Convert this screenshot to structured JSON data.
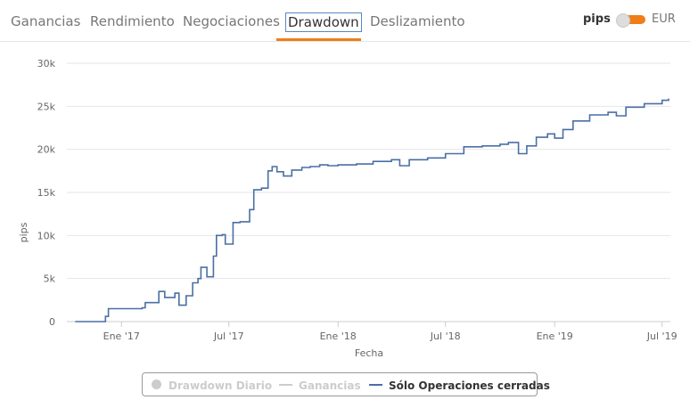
{
  "tabs": [
    {
      "label": "Ganancias"
    },
    {
      "label": "Rendimiento"
    },
    {
      "label": "Negociaciones"
    },
    {
      "label": "Drawdown"
    },
    {
      "label": "Deslizamiento"
    }
  ],
  "active_tab": "Drawdown",
  "unit_switch": {
    "left_label": "pips",
    "right_label": "EUR",
    "selected": "pips"
  },
  "colors": {
    "accent": "#f07d1a",
    "series_line": "#4a6fa5",
    "inactive_legend": "#cccccc",
    "grid": "#e6e6e6"
  },
  "chart_data": {
    "type": "line",
    "ylabel": "pips",
    "xlabel": "Fecha",
    "ylim": [
      0,
      30000
    ],
    "y_ticks": [
      "0",
      "5k",
      "10k",
      "15k",
      "20k",
      "25k",
      "30k"
    ],
    "x_ticks": [
      "Ene '17",
      "Jul '17",
      "Ene '18",
      "Jul '18",
      "Ene '19",
      "Jul '19"
    ],
    "x_range": [
      "2016-10-01",
      "2019-07-15"
    ],
    "grid": true,
    "legend_position": "bottom",
    "series": [
      {
        "name": "Sólo Operaciones cerradas",
        "visible": true,
        "points": [
          [
            "2016-10-15",
            0
          ],
          [
            "2016-11-20",
            0
          ],
          [
            "2016-12-05",
            600
          ],
          [
            "2016-12-10",
            1500
          ],
          [
            "2017-01-20",
            1500
          ],
          [
            "2017-02-05",
            1600
          ],
          [
            "2017-02-10",
            2200
          ],
          [
            "2017-03-01",
            2200
          ],
          [
            "2017-03-05",
            3500
          ],
          [
            "2017-03-15",
            2800
          ],
          [
            "2017-04-01",
            3300
          ],
          [
            "2017-04-08",
            1900
          ],
          [
            "2017-04-20",
            3000
          ],
          [
            "2017-05-01",
            4500
          ],
          [
            "2017-05-10",
            5000
          ],
          [
            "2017-05-15",
            6300
          ],
          [
            "2017-05-25",
            5200
          ],
          [
            "2017-06-05",
            7600
          ],
          [
            "2017-06-10",
            10000
          ],
          [
            "2017-06-20",
            10100
          ],
          [
            "2017-06-25",
            9000
          ],
          [
            "2017-07-05",
            9000
          ],
          [
            "2017-07-08",
            11500
          ],
          [
            "2017-07-20",
            11600
          ],
          [
            "2017-08-05",
            13000
          ],
          [
            "2017-08-12",
            15300
          ],
          [
            "2017-08-25",
            15500
          ],
          [
            "2017-09-05",
            17500
          ],
          [
            "2017-09-12",
            18000
          ],
          [
            "2017-09-20",
            17400
          ],
          [
            "2017-10-01",
            16900
          ],
          [
            "2017-10-15",
            17600
          ],
          [
            "2017-11-01",
            17900
          ],
          [
            "2017-11-15",
            18000
          ],
          [
            "2017-12-01",
            18200
          ],
          [
            "2017-12-15",
            18100
          ],
          [
            "2018-01-01",
            18200
          ],
          [
            "2018-02-01",
            18300
          ],
          [
            "2018-03-01",
            18600
          ],
          [
            "2018-04-01",
            18800
          ],
          [
            "2018-04-15",
            18100
          ],
          [
            "2018-05-01",
            18800
          ],
          [
            "2018-06-01",
            19000
          ],
          [
            "2018-07-01",
            19500
          ],
          [
            "2018-08-01",
            20300
          ],
          [
            "2018-09-01",
            20400
          ],
          [
            "2018-10-01",
            20600
          ],
          [
            "2018-10-15",
            20800
          ],
          [
            "2018-11-01",
            19500
          ],
          [
            "2018-11-15",
            20400
          ],
          [
            "2018-12-01",
            21400
          ],
          [
            "2018-12-20",
            21800
          ],
          [
            "2019-01-01",
            21300
          ],
          [
            "2019-01-15",
            22300
          ],
          [
            "2019-02-01",
            23300
          ],
          [
            "2019-03-01",
            24000
          ],
          [
            "2019-04-01",
            24300
          ],
          [
            "2019-04-15",
            23900
          ],
          [
            "2019-05-01",
            24900
          ],
          [
            "2019-06-01",
            25300
          ],
          [
            "2019-06-20",
            25300
          ],
          [
            "2019-07-01",
            25700
          ],
          [
            "2019-07-12",
            25900
          ]
        ]
      },
      {
        "name": "Ganancias",
        "visible": false
      },
      {
        "name": "Drawdown Diario",
        "visible": false
      }
    ]
  },
  "legend": [
    {
      "label": "Drawdown Diario",
      "active": false
    },
    {
      "label": "Ganancias",
      "active": false
    },
    {
      "label": "Sólo Operaciones cerradas",
      "active": true
    }
  ]
}
